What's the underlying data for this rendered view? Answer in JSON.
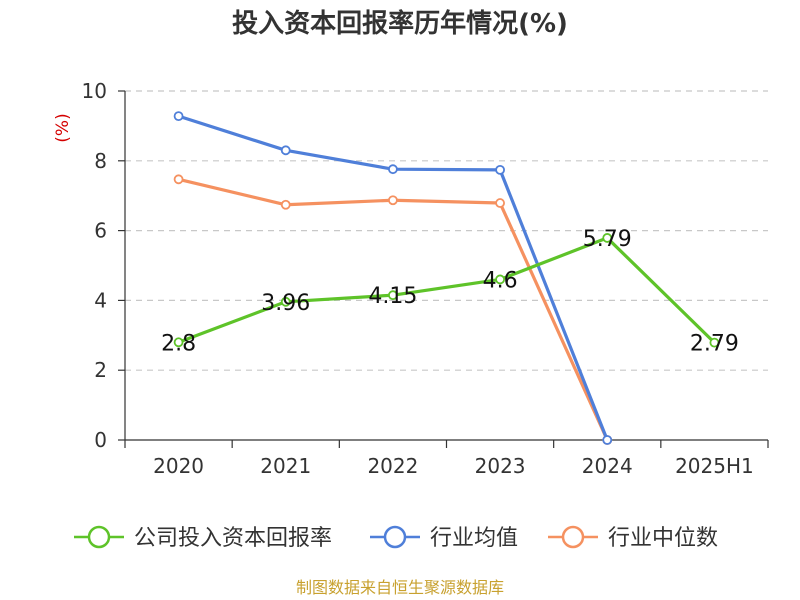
{
  "chart_data": {
    "type": "line",
    "title": "投入资本回报率历年情况(%)",
    "ylabel": "(%)",
    "categories": [
      "2020",
      "2021",
      "2022",
      "2023",
      "2024",
      "2025H1"
    ],
    "ylim": [
      0,
      10
    ],
    "yticks": [
      0,
      2,
      4,
      6,
      8,
      10
    ],
    "grid": true,
    "legend_position": "bottom",
    "series": [
      {
        "name": "公司投入资本回报率",
        "color": "#5ec329",
        "values": [
          2.8,
          3.96,
          4.15,
          4.6,
          5.79,
          2.79
        ],
        "labels": [
          "2.8",
          "3.96",
          "4.15",
          "4.6",
          "5.79",
          "2.79"
        ]
      },
      {
        "name": "行业均值",
        "color": "#4f7fd9",
        "values": [
          9.28,
          8.3,
          7.76,
          7.74,
          0,
          null
        ]
      },
      {
        "name": "行业中位数",
        "color": "#f59160",
        "values": [
          7.47,
          6.74,
          6.87,
          6.79,
          0,
          null
        ]
      }
    ]
  },
  "source": "制图数据来自恒生聚源数据库"
}
